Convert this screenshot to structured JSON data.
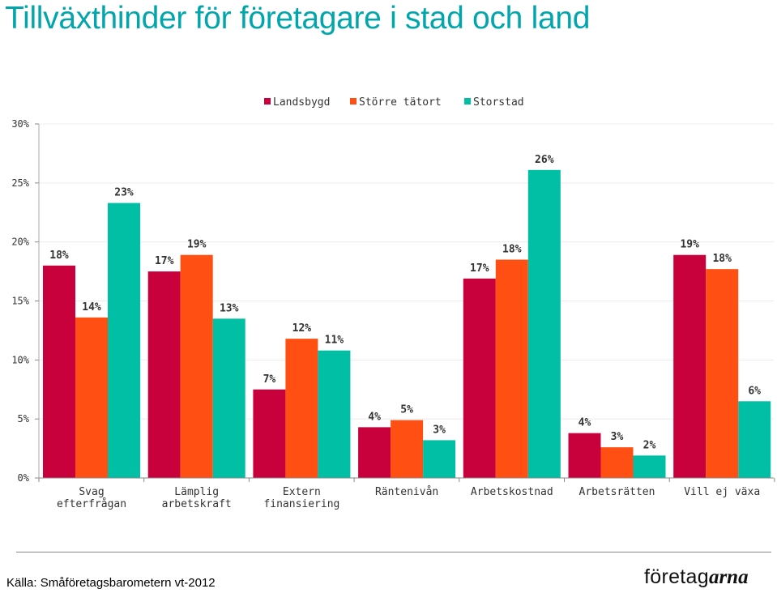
{
  "page": {
    "title": "Tillväxthinder för företagare i stad och land",
    "source": "Källa: Småföretagsbarometern vt-2012",
    "logo": {
      "part1": "företag",
      "part2": "arna"
    }
  },
  "colors": {
    "title": "#00a6ac",
    "Landsbygd": "#c8003c",
    "Större tätort": "#ff4f12",
    "Storstad": "#00bfa5"
  },
  "chart_data": {
    "type": "bar",
    "title": "",
    "xlabel": "",
    "ylabel": "",
    "ylim": [
      0,
      30
    ],
    "yticks": [
      0,
      5,
      10,
      15,
      20,
      25,
      30
    ],
    "ytick_labels": [
      "0%",
      "5%",
      "10%",
      "15%",
      "20%",
      "25%",
      "30%"
    ],
    "legend_position": "top-center",
    "grid": true,
    "categories": [
      [
        "Svag",
        "efterfrågan"
      ],
      [
        "Lämplig",
        "arbetskraft"
      ],
      [
        "Extern",
        "finansiering"
      ],
      [
        "Räntenivån"
      ],
      [
        "Arbetskostnad"
      ],
      [
        "Arbetsrätten"
      ],
      [
        "Vill ej växa"
      ]
    ],
    "series": [
      {
        "name": "Landsbygd",
        "color": "#c8003c",
        "values": [
          18,
          17.5,
          7.5,
          4.3,
          16.9,
          3.8,
          18.9
        ],
        "labels": [
          "18%",
          "17%",
          "7%",
          "4%",
          "17%",
          "4%",
          "19%"
        ]
      },
      {
        "name": "Större tätort",
        "color": "#ff4f12",
        "values": [
          13.6,
          18.9,
          11.8,
          4.9,
          18.5,
          2.6,
          17.7
        ],
        "labels": [
          "14%",
          "19%",
          "12%",
          "5%",
          "18%",
          "3%",
          "18%"
        ]
      },
      {
        "name": "Storstad",
        "color": "#00bfa5",
        "values": [
          23.3,
          13.5,
          10.8,
          3.2,
          26.1,
          1.9,
          6.5
        ],
        "labels": [
          "23%",
          "13%",
          "11%",
          "3%",
          "26%",
          "2%",
          "6%"
        ]
      }
    ]
  }
}
